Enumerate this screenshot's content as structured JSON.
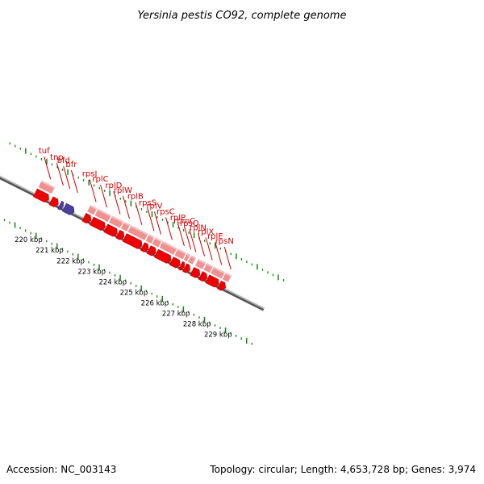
{
  "title": "Yersinia pestis CO92, complete genome",
  "footer": {
    "accession": "Accession: NC_003143",
    "summary": "Topology: circular; Length: 4,653,728 bp; Genes: 3,974"
  },
  "colors": {
    "gene_label": "#d00000",
    "forward_arrow": "#ee0000",
    "other_arrow": "#4b3f9a",
    "feature_band": "#f09090",
    "backbone": "#808080",
    "gc_ticks": "#118811"
  },
  "scale": {
    "unit": "kbp",
    "labels": [
      {
        "pos": 220,
        "text": "220 kbp"
      },
      {
        "pos": 221,
        "text": "221 kbp"
      },
      {
        "pos": 222,
        "text": "222 kbp"
      },
      {
        "pos": 223,
        "text": "223 kbp"
      },
      {
        "pos": 224,
        "text": "224 kbp"
      },
      {
        "pos": 225,
        "text": "225 kbp"
      },
      {
        "pos": 226,
        "text": "226 kbp"
      },
      {
        "pos": 227,
        "text": "227 kbp"
      },
      {
        "pos": 228,
        "text": "228 kbp"
      },
      {
        "pos": 229,
        "text": "229 kbp"
      }
    ]
  },
  "genes": [
    {
      "name": "tuf",
      "start": 219.7,
      "end": 220.35,
      "kind": "cds"
    },
    {
      "name": "tnp",
      "start": 220.45,
      "end": 220.8,
      "kind": "cds"
    },
    {
      "name": "bfd",
      "start": 220.86,
      "end": 221.03,
      "kind": "cds"
    },
    {
      "name": "bfr",
      "start": 221.08,
      "end": 221.55,
      "kind": "cds"
    },
    {
      "name": "rpsJ",
      "start": 222.02,
      "end": 222.35,
      "kind": "cds"
    },
    {
      "name": "rplC",
      "start": 222.38,
      "end": 223.02,
      "kind": "cds"
    },
    {
      "name": "rplD",
      "start": 223.05,
      "end": 223.6,
      "kind": "cds"
    },
    {
      "name": "rplW",
      "start": 223.62,
      "end": 223.92,
      "kind": "cds"
    },
    {
      "name": "rplB",
      "start": 223.95,
      "end": 224.77,
      "kind": "cds"
    },
    {
      "name": "rpsS",
      "start": 224.8,
      "end": 225.08,
      "kind": "cds"
    },
    {
      "name": "rplV",
      "start": 225.1,
      "end": 225.43,
      "kind": "cds"
    },
    {
      "name": "rpsC",
      "start": 225.45,
      "end": 226.15,
      "kind": "cds"
    },
    {
      "name": "rplP",
      "start": 226.17,
      "end": 226.58,
      "kind": "cds"
    },
    {
      "name": "rpmC",
      "start": 226.6,
      "end": 226.78,
      "kind": "cds"
    },
    {
      "name": "rpsQ",
      "start": 226.8,
      "end": 227.05,
      "kind": "cds"
    },
    {
      "name": "rplN",
      "start": 227.15,
      "end": 227.52,
      "kind": "cds"
    },
    {
      "name": "rplX",
      "start": 227.55,
      "end": 227.86,
      "kind": "cds"
    },
    {
      "name": "rplE",
      "start": 227.88,
      "end": 228.42,
      "kind": "cds"
    },
    {
      "name": "rpsN",
      "start": 228.44,
      "end": 228.74,
      "kind": "cds"
    }
  ]
}
